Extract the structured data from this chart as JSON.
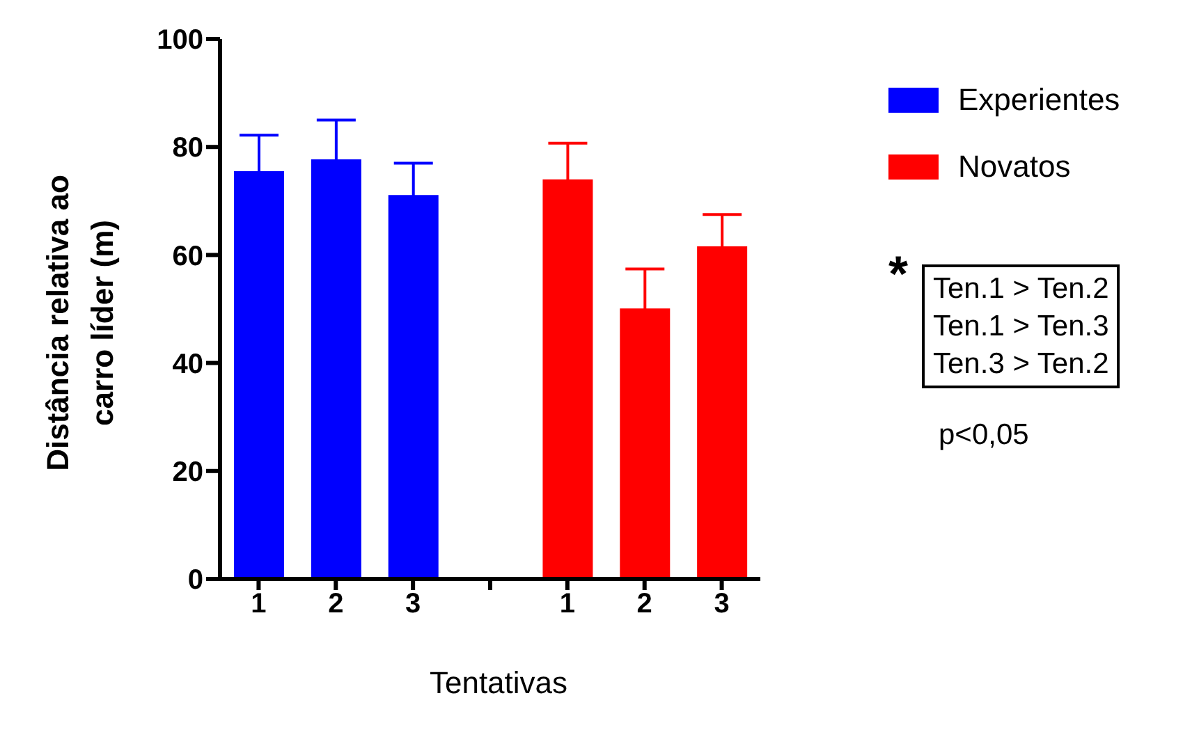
{
  "chart_data": {
    "type": "bar",
    "xlabel": "Tentativas",
    "ylabel": "Distância relativa ao carro líder (m)",
    "categories": [
      "1",
      "2",
      "3",
      null,
      "1",
      "2",
      "3"
    ],
    "series": [
      {
        "name": "Experientes",
        "color": "#0000ff",
        "values": [
          75.5,
          77.7,
          71.1,
          null,
          null,
          null,
          null
        ],
        "errors": [
          6.7,
          7.3,
          5.9,
          null,
          null,
          null,
          null
        ]
      },
      {
        "name": "Novatos",
        "color": "#ff0000",
        "values": [
          null,
          null,
          null,
          null,
          74.0,
          50.1,
          61.6
        ],
        "errors": [
          null,
          null,
          null,
          null,
          6.7,
          7.3,
          5.9
        ]
      }
    ],
    "ylim": [
      0,
      100
    ],
    "yticks": [
      0,
      20,
      40,
      60,
      80,
      100
    ],
    "legend": "top right",
    "annotations": [
      "*",
      "Ten.1 > Ten.2",
      "Ten.1 > Ten.3",
      "Ten.3 > Ten.2",
      "p<0,05"
    ]
  }
}
